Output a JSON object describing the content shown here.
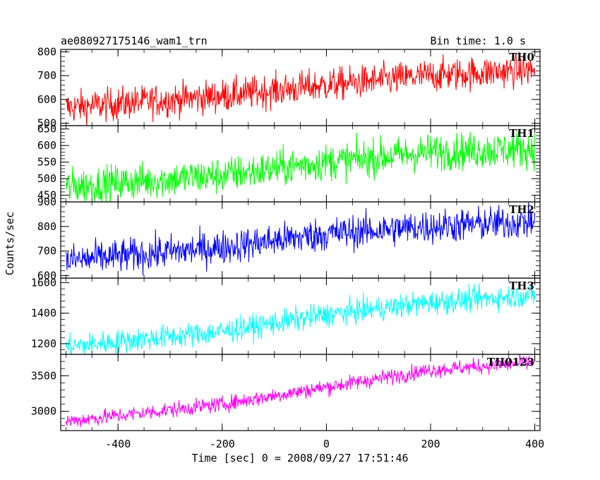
{
  "header": {
    "title": "ae080927175146_wam1_trn",
    "bin_time": "Bin time: 1.0 s"
  },
  "chart_data": {
    "type": "line",
    "xlabel": "Time [sec] 0 = 2008/09/27 17:51:46",
    "ylabel": "Counts/sec",
    "xlim": [
      -510,
      410
    ],
    "x_ticks": [
      -400,
      -200,
      0,
      200,
      400
    ],
    "x": {
      "start": -500,
      "end": 400,
      "step": 1
    },
    "grid": false,
    "panels": [
      {
        "name": "TH0",
        "color": "#ff0000",
        "ylim": [
          490,
          810
        ],
        "y_ticks": [
          500,
          600,
          700,
          800
        ],
        "trend": [
          [
            -500,
            565
          ],
          [
            -200,
            615
          ],
          [
            0,
            660
          ],
          [
            200,
            700
          ],
          [
            400,
            725
          ]
        ],
        "noise": 35
      },
      {
        "name": "TH1",
        "color": "#00ff00",
        "ylim": [
          430,
          660
        ],
        "y_ticks": [
          450,
          500,
          550,
          600,
          650
        ],
        "trend": [
          [
            -500,
            475
          ],
          [
            -200,
            510
          ],
          [
            0,
            550
          ],
          [
            200,
            580
          ],
          [
            400,
            590
          ]
        ],
        "noise": 28
      },
      {
        "name": "TH2",
        "color": "#0000ff",
        "ylim": [
          590,
          900
        ],
        "y_ticks": [
          600,
          700,
          800,
          900
        ],
        "trend": [
          [
            -500,
            660
          ],
          [
            -200,
            715
          ],
          [
            0,
            770
          ],
          [
            200,
            800
          ],
          [
            400,
            820
          ]
        ],
        "noise": 35
      },
      {
        "name": "TH3",
        "color": "#00ffff",
        "ylim": [
          1130,
          1630
        ],
        "y_ticks": [
          1200,
          1400,
          1600
        ],
        "trend": [
          [
            -500,
            1180
          ],
          [
            -200,
            1280
          ],
          [
            0,
            1390
          ],
          [
            200,
            1470
          ],
          [
            400,
            1520
          ]
        ],
        "noise": 40
      },
      {
        "name": "TH0123",
        "color": "#ff00ff",
        "ylim": [
          2730,
          3800
        ],
        "y_ticks": [
          3000,
          3500
        ],
        "trend": [
          [
            -500,
            2860
          ],
          [
            -200,
            3100
          ],
          [
            0,
            3340
          ],
          [
            200,
            3580
          ],
          [
            400,
            3690
          ]
        ],
        "noise": 55
      }
    ]
  }
}
